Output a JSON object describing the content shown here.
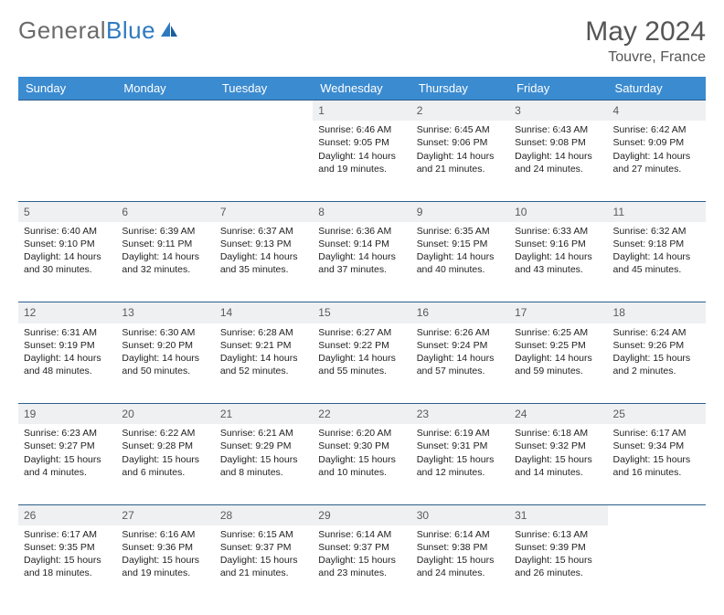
{
  "brand": {
    "part1": "General",
    "part2": "Blue"
  },
  "title": "May 2024",
  "location": "Touvre, France",
  "colors": {
    "header_bg": "#3b8bd0",
    "header_text": "#ffffff",
    "daynum_bg": "#eef0f2",
    "daynum_text": "#5a5a5a",
    "body_text": "#222222",
    "brand_gray": "#6b6b6b",
    "brand_blue": "#2f7abf",
    "row_border": "#2c5f8d"
  },
  "typography": {
    "title_fontsize": 30,
    "subtitle_fontsize": 16,
    "header_fontsize": 13,
    "daynum_fontsize": 12,
    "cell_fontsize": 10.5
  },
  "weekdays": [
    "Sunday",
    "Monday",
    "Tuesday",
    "Wednesday",
    "Thursday",
    "Friday",
    "Saturday"
  ],
  "weeks": [
    [
      null,
      null,
      null,
      {
        "n": "1",
        "sr": "Sunrise: 6:46 AM",
        "ss": "Sunset: 9:05 PM",
        "d1": "Daylight: 14 hours",
        "d2": "and 19 minutes."
      },
      {
        "n": "2",
        "sr": "Sunrise: 6:45 AM",
        "ss": "Sunset: 9:06 PM",
        "d1": "Daylight: 14 hours",
        "d2": "and 21 minutes."
      },
      {
        "n": "3",
        "sr": "Sunrise: 6:43 AM",
        "ss": "Sunset: 9:08 PM",
        "d1": "Daylight: 14 hours",
        "d2": "and 24 minutes."
      },
      {
        "n": "4",
        "sr": "Sunrise: 6:42 AM",
        "ss": "Sunset: 9:09 PM",
        "d1": "Daylight: 14 hours",
        "d2": "and 27 minutes."
      }
    ],
    [
      {
        "n": "5",
        "sr": "Sunrise: 6:40 AM",
        "ss": "Sunset: 9:10 PM",
        "d1": "Daylight: 14 hours",
        "d2": "and 30 minutes."
      },
      {
        "n": "6",
        "sr": "Sunrise: 6:39 AM",
        "ss": "Sunset: 9:11 PM",
        "d1": "Daylight: 14 hours",
        "d2": "and 32 minutes."
      },
      {
        "n": "7",
        "sr": "Sunrise: 6:37 AM",
        "ss": "Sunset: 9:13 PM",
        "d1": "Daylight: 14 hours",
        "d2": "and 35 minutes."
      },
      {
        "n": "8",
        "sr": "Sunrise: 6:36 AM",
        "ss": "Sunset: 9:14 PM",
        "d1": "Daylight: 14 hours",
        "d2": "and 37 minutes."
      },
      {
        "n": "9",
        "sr": "Sunrise: 6:35 AM",
        "ss": "Sunset: 9:15 PM",
        "d1": "Daylight: 14 hours",
        "d2": "and 40 minutes."
      },
      {
        "n": "10",
        "sr": "Sunrise: 6:33 AM",
        "ss": "Sunset: 9:16 PM",
        "d1": "Daylight: 14 hours",
        "d2": "and 43 minutes."
      },
      {
        "n": "11",
        "sr": "Sunrise: 6:32 AM",
        "ss": "Sunset: 9:18 PM",
        "d1": "Daylight: 14 hours",
        "d2": "and 45 minutes."
      }
    ],
    [
      {
        "n": "12",
        "sr": "Sunrise: 6:31 AM",
        "ss": "Sunset: 9:19 PM",
        "d1": "Daylight: 14 hours",
        "d2": "and 48 minutes."
      },
      {
        "n": "13",
        "sr": "Sunrise: 6:30 AM",
        "ss": "Sunset: 9:20 PM",
        "d1": "Daylight: 14 hours",
        "d2": "and 50 minutes."
      },
      {
        "n": "14",
        "sr": "Sunrise: 6:28 AM",
        "ss": "Sunset: 9:21 PM",
        "d1": "Daylight: 14 hours",
        "d2": "and 52 minutes."
      },
      {
        "n": "15",
        "sr": "Sunrise: 6:27 AM",
        "ss": "Sunset: 9:22 PM",
        "d1": "Daylight: 14 hours",
        "d2": "and 55 minutes."
      },
      {
        "n": "16",
        "sr": "Sunrise: 6:26 AM",
        "ss": "Sunset: 9:24 PM",
        "d1": "Daylight: 14 hours",
        "d2": "and 57 minutes."
      },
      {
        "n": "17",
        "sr": "Sunrise: 6:25 AM",
        "ss": "Sunset: 9:25 PM",
        "d1": "Daylight: 14 hours",
        "d2": "and 59 minutes."
      },
      {
        "n": "18",
        "sr": "Sunrise: 6:24 AM",
        "ss": "Sunset: 9:26 PM",
        "d1": "Daylight: 15 hours",
        "d2": "and 2 minutes."
      }
    ],
    [
      {
        "n": "19",
        "sr": "Sunrise: 6:23 AM",
        "ss": "Sunset: 9:27 PM",
        "d1": "Daylight: 15 hours",
        "d2": "and 4 minutes."
      },
      {
        "n": "20",
        "sr": "Sunrise: 6:22 AM",
        "ss": "Sunset: 9:28 PM",
        "d1": "Daylight: 15 hours",
        "d2": "and 6 minutes."
      },
      {
        "n": "21",
        "sr": "Sunrise: 6:21 AM",
        "ss": "Sunset: 9:29 PM",
        "d1": "Daylight: 15 hours",
        "d2": "and 8 minutes."
      },
      {
        "n": "22",
        "sr": "Sunrise: 6:20 AM",
        "ss": "Sunset: 9:30 PM",
        "d1": "Daylight: 15 hours",
        "d2": "and 10 minutes."
      },
      {
        "n": "23",
        "sr": "Sunrise: 6:19 AM",
        "ss": "Sunset: 9:31 PM",
        "d1": "Daylight: 15 hours",
        "d2": "and 12 minutes."
      },
      {
        "n": "24",
        "sr": "Sunrise: 6:18 AM",
        "ss": "Sunset: 9:32 PM",
        "d1": "Daylight: 15 hours",
        "d2": "and 14 minutes."
      },
      {
        "n": "25",
        "sr": "Sunrise: 6:17 AM",
        "ss": "Sunset: 9:34 PM",
        "d1": "Daylight: 15 hours",
        "d2": "and 16 minutes."
      }
    ],
    [
      {
        "n": "26",
        "sr": "Sunrise: 6:17 AM",
        "ss": "Sunset: 9:35 PM",
        "d1": "Daylight: 15 hours",
        "d2": "and 18 minutes."
      },
      {
        "n": "27",
        "sr": "Sunrise: 6:16 AM",
        "ss": "Sunset: 9:36 PM",
        "d1": "Daylight: 15 hours",
        "d2": "and 19 minutes."
      },
      {
        "n": "28",
        "sr": "Sunrise: 6:15 AM",
        "ss": "Sunset: 9:37 PM",
        "d1": "Daylight: 15 hours",
        "d2": "and 21 minutes."
      },
      {
        "n": "29",
        "sr": "Sunrise: 6:14 AM",
        "ss": "Sunset: 9:37 PM",
        "d1": "Daylight: 15 hours",
        "d2": "and 23 minutes."
      },
      {
        "n": "30",
        "sr": "Sunrise: 6:14 AM",
        "ss": "Sunset: 9:38 PM",
        "d1": "Daylight: 15 hours",
        "d2": "and 24 minutes."
      },
      {
        "n": "31",
        "sr": "Sunrise: 6:13 AM",
        "ss": "Sunset: 9:39 PM",
        "d1": "Daylight: 15 hours",
        "d2": "and 26 minutes."
      },
      null
    ]
  ]
}
